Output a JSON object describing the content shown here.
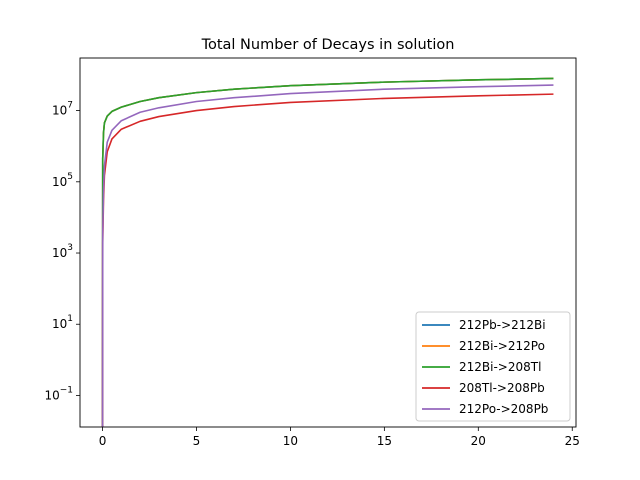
{
  "chart_data": {
    "type": "line",
    "title": "Total Number of Decays in solution",
    "xlabel": "",
    "ylabel": "",
    "yscale": "log",
    "xlim": [
      -1.2,
      25.2
    ],
    "ylim": [
      0.013,
      300000000
    ],
    "x_ticks": [
      0,
      5,
      10,
      15,
      20,
      25
    ],
    "y_ticks": [
      {
        "value": 0.1,
        "base": "10",
        "exp": "−1"
      },
      {
        "value": 10,
        "base": "10",
        "exp": "1"
      },
      {
        "value": 1000,
        "base": "10",
        "exp": "3"
      },
      {
        "value": 100000,
        "base": "10",
        "exp": "5"
      },
      {
        "value": 10000000,
        "base": "10",
        "exp": "7"
      }
    ],
    "grid": false,
    "legend_position": "lower right",
    "series": [
      {
        "name": "212Pb->212Bi",
        "color": "#1f77b4",
        "x": [
          0,
          0.01,
          0.05,
          0.1,
          0.25,
          0.5,
          1,
          2,
          3,
          5,
          7,
          10,
          15,
          20,
          24
        ],
        "y": [
          0.01,
          450000,
          2300000,
          4500000,
          7000000,
          9500000,
          12500000,
          18000000,
          23000000,
          32000000,
          40000000,
          50000000,
          63000000,
          73000000,
          80000000
        ]
      },
      {
        "name": "212Bi->212Po",
        "color": "#ff7f0e",
        "x": [
          0,
          0.01,
          0.05,
          0.1,
          0.25,
          0.5,
          1,
          2,
          3,
          5,
          7,
          10,
          15,
          20,
          24
        ],
        "y": [
          0.01,
          450000,
          2300000,
          4500000,
          7000000,
          9500000,
          12500000,
          18000000,
          23000000,
          32000000,
          40000000,
          50000000,
          63000000,
          73000000,
          80000000
        ]
      },
      {
        "name": "212Bi->208Tl",
        "color": "#2ca02c",
        "x": [
          0,
          0.01,
          0.05,
          0.1,
          0.25,
          0.5,
          1,
          2,
          3,
          5,
          7,
          10,
          15,
          20,
          24
        ],
        "y": [
          0.01,
          450000,
          2300000,
          4500000,
          7000000,
          9500000,
          12500000,
          18000000,
          23000000,
          32000000,
          40000000,
          50000000,
          63000000,
          73000000,
          80000000
        ]
      },
      {
        "name": "208Tl->208Pb",
        "color": "#d62728",
        "x": [
          0,
          0.01,
          0.05,
          0.1,
          0.25,
          0.5,
          1,
          2,
          3,
          5,
          7,
          10,
          15,
          20,
          24
        ],
        "y": [
          0.01,
          2000,
          30000,
          150000,
          700000,
          1600000,
          3000000,
          5000000,
          6800000,
          10000000,
          13000000,
          17000000,
          22000000,
          26000000,
          29000000
        ]
      },
      {
        "name": "212Po->208Pb",
        "color": "#9467bd",
        "x": [
          0,
          0.01,
          0.05,
          0.1,
          0.25,
          0.5,
          1,
          2,
          3,
          5,
          7,
          10,
          15,
          20,
          24
        ],
        "y": [
          0.01,
          3500,
          55000,
          280000,
          1300000,
          2800000,
          5200000,
          9000000,
          12000000,
          18000000,
          23000000,
          30000000,
          40000000,
          47000000,
          52000000
        ]
      }
    ]
  }
}
